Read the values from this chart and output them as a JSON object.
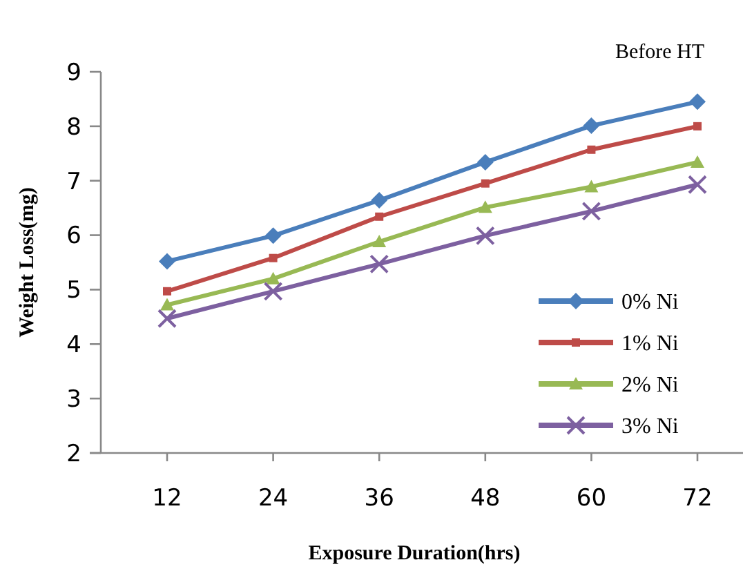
{
  "chart_data": {
    "type": "line",
    "xlabel": "Exposure Duration(hrs)",
    "ylabel": "Weight Loss(mg)",
    "annotations": [
      "Before HT"
    ],
    "categories": [
      "12",
      "24",
      "36",
      "48",
      "60",
      "72"
    ],
    "ylim": [
      2,
      9
    ],
    "yticks": [
      2,
      3,
      4,
      5,
      6,
      7,
      8,
      9
    ],
    "grid": false,
    "legend": "bottom right",
    "series": [
      {
        "name": "0% Ni",
        "color": "#4a7ebb",
        "marker": "diamond",
        "values": [
          5.52,
          5.99,
          6.64,
          7.34,
          8.01,
          8.45
        ]
      },
      {
        "name": "1% Ni",
        "color": "#be4b48",
        "marker": "square",
        "values": [
          4.97,
          5.58,
          6.34,
          6.95,
          7.57,
          8.0
        ]
      },
      {
        "name": "2% Ni",
        "color": "#98b954",
        "marker": "triangle",
        "values": [
          4.72,
          5.2,
          5.88,
          6.51,
          6.89,
          7.34
        ]
      },
      {
        "name": "3% Ni",
        "color": "#7d60a0",
        "marker": "cross",
        "values": [
          4.47,
          4.97,
          5.47,
          5.99,
          6.44,
          6.93
        ]
      }
    ]
  }
}
